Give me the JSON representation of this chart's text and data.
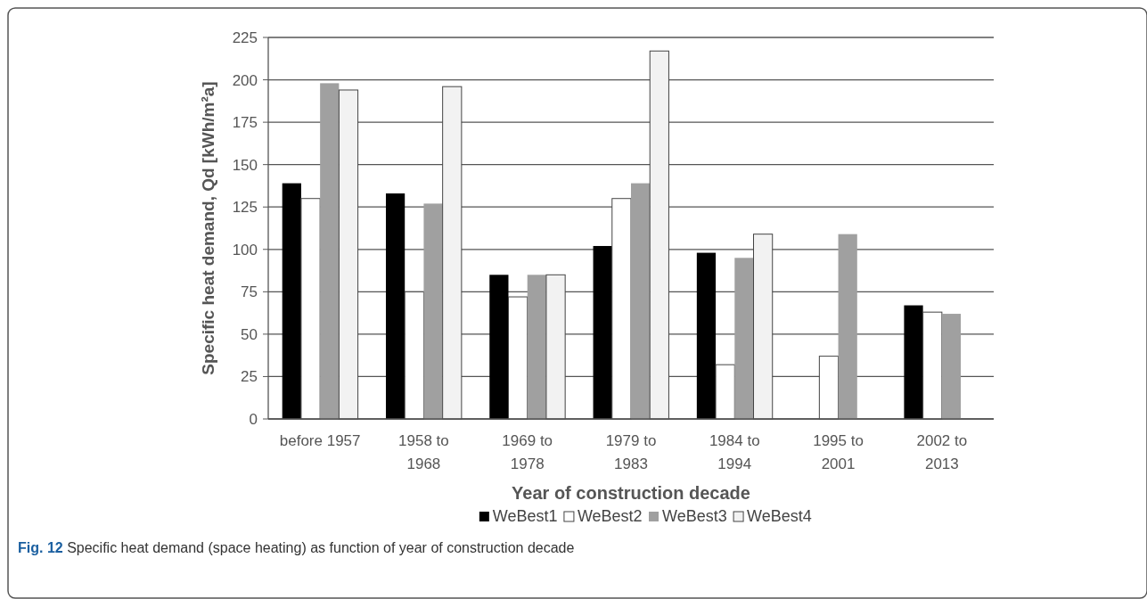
{
  "chart_data": {
    "type": "bar",
    "xlabel": "Year of construction decade",
    "ylabel": "Specific heat demand, Qd [kWh/m²a]",
    "categories": [
      "before 1957",
      "1958 to 1968",
      "1969 to 1978",
      "1979 to 1983",
      "1984 to 1994",
      "1995 to 2001",
      "2002 to 2013"
    ],
    "series": [
      {
        "name": "WeBest1",
        "color": "#000000",
        "values": [
          139,
          133,
          85,
          102,
          98,
          null,
          67
        ]
      },
      {
        "name": "WeBest2",
        "color": "#ffffff",
        "values": [
          130,
          75,
          72,
          130,
          32,
          37,
          63
        ]
      },
      {
        "name": "WeBest3",
        "color": "#a0a0a0",
        "values": [
          198,
          127,
          85,
          139,
          95,
          109,
          62
        ]
      },
      {
        "name": "WeBest4",
        "color": "#f2f2f2",
        "values": [
          194,
          196,
          85,
          217,
          109,
          null,
          null
        ]
      }
    ],
    "ylim": [
      0,
      225
    ],
    "yticks": [
      0,
      25,
      50,
      75,
      100,
      125,
      150,
      175,
      200,
      225
    ],
    "grid": "y",
    "legend": "bottom",
    "annotations": [
      "Fig. 12 Specific heat demand (space heating) as function of year of construction decade"
    ]
  }
}
